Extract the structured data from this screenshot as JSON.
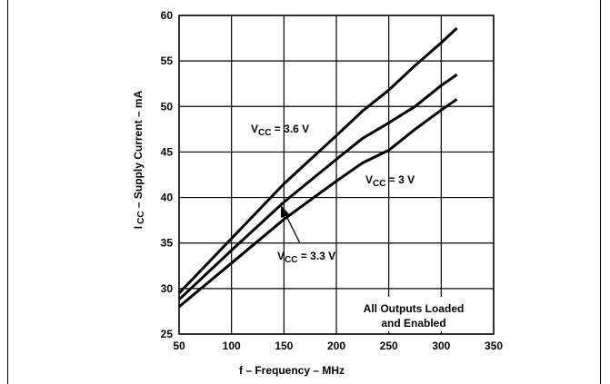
{
  "chart_data": {
    "type": "line",
    "title": "",
    "xlabel": "f – Frequency – MHz",
    "ylabel": {
      "prefix": "I",
      "sub": "CC",
      "rest": " – Supply Current – mA"
    },
    "xlim": [
      50,
      350
    ],
    "ylim": [
      25,
      60
    ],
    "xticks": [
      50,
      100,
      150,
      200,
      250,
      300,
      350
    ],
    "yticks": [
      25,
      30,
      35,
      40,
      45,
      50,
      55,
      60
    ],
    "grid": true,
    "series": [
      {
        "name": "VCC = 3.6 V",
        "label": {
          "pre": "V",
          "sub": "CC",
          "post": " = 3.6 V"
        },
        "x": [
          50,
          100,
          150,
          200,
          225,
          250,
          275,
          300,
          315
        ],
        "y": [
          29.5,
          35.5,
          41.5,
          46.8,
          49.5,
          51.8,
          54.5,
          57,
          58.6
        ]
      },
      {
        "name": "VCC = 3.3 V",
        "label": {
          "pre": "V",
          "sub": "CC",
          "post": " = 3.3 V"
        },
        "x": [
          50,
          100,
          150,
          200,
          225,
          250,
          275,
          300,
          315
        ],
        "y": [
          28.8,
          34.2,
          39.5,
          44.2,
          46.5,
          48.2,
          50.0,
          52.3,
          53.5
        ]
      },
      {
        "name": "VCC = 3 V",
        "label": {
          "pre": "V",
          "sub": "CC",
          "post": " = 3 V"
        },
        "x": [
          50,
          100,
          150,
          200,
          225,
          250,
          275,
          300,
          315
        ],
        "y": [
          28.0,
          32.8,
          37.6,
          41.8,
          43.8,
          45.2,
          47.5,
          49.6,
          50.8
        ]
      }
    ],
    "annotation": [
      "All Outputs Loaded",
      "and Enabled"
    ]
  }
}
